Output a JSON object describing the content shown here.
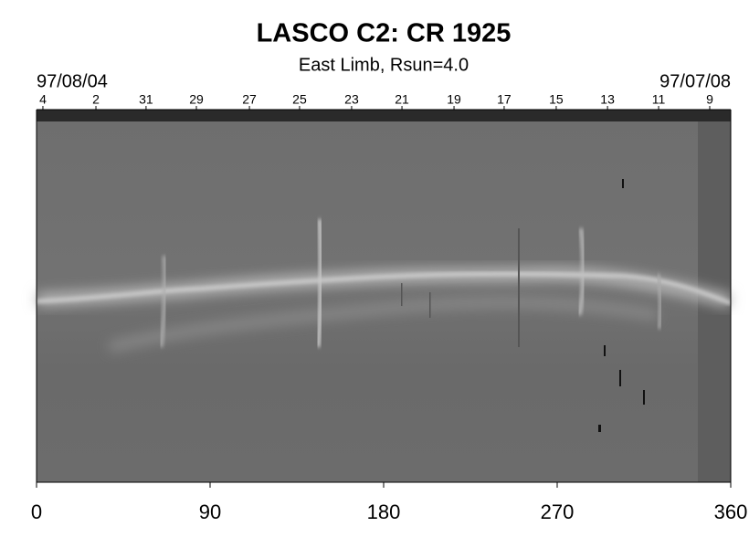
{
  "chart_data": {
    "type": "image",
    "title": "LASCO C2: CR 1925",
    "subtitle": "East Limb, Rsun=4.0",
    "start_label": "97/08/04",
    "end_label": "97/07/08",
    "xlim": [
      0,
      360
    ],
    "xticks": [
      0,
      90,
      180,
      270,
      360
    ],
    "top_ticks": [
      {
        "value": 3.3,
        "label": "4"
      },
      {
        "value": 30.8,
        "label": "2"
      },
      {
        "value": 56.8,
        "label": "31"
      },
      {
        "value": 82.9,
        "label": "29"
      },
      {
        "value": 110.4,
        "label": "27"
      },
      {
        "value": 136.4,
        "label": "25"
      },
      {
        "value": 163.4,
        "label": "23"
      },
      {
        "value": 189.5,
        "label": "21"
      },
      {
        "value": 216.5,
        "label": "19"
      },
      {
        "value": 242.5,
        "label": "17"
      },
      {
        "value": 269.5,
        "label": "15"
      },
      {
        "value": 296.1,
        "label": "13"
      },
      {
        "value": 322.6,
        "label": "11"
      },
      {
        "value": 349.1,
        "label": "9"
      }
    ]
  }
}
